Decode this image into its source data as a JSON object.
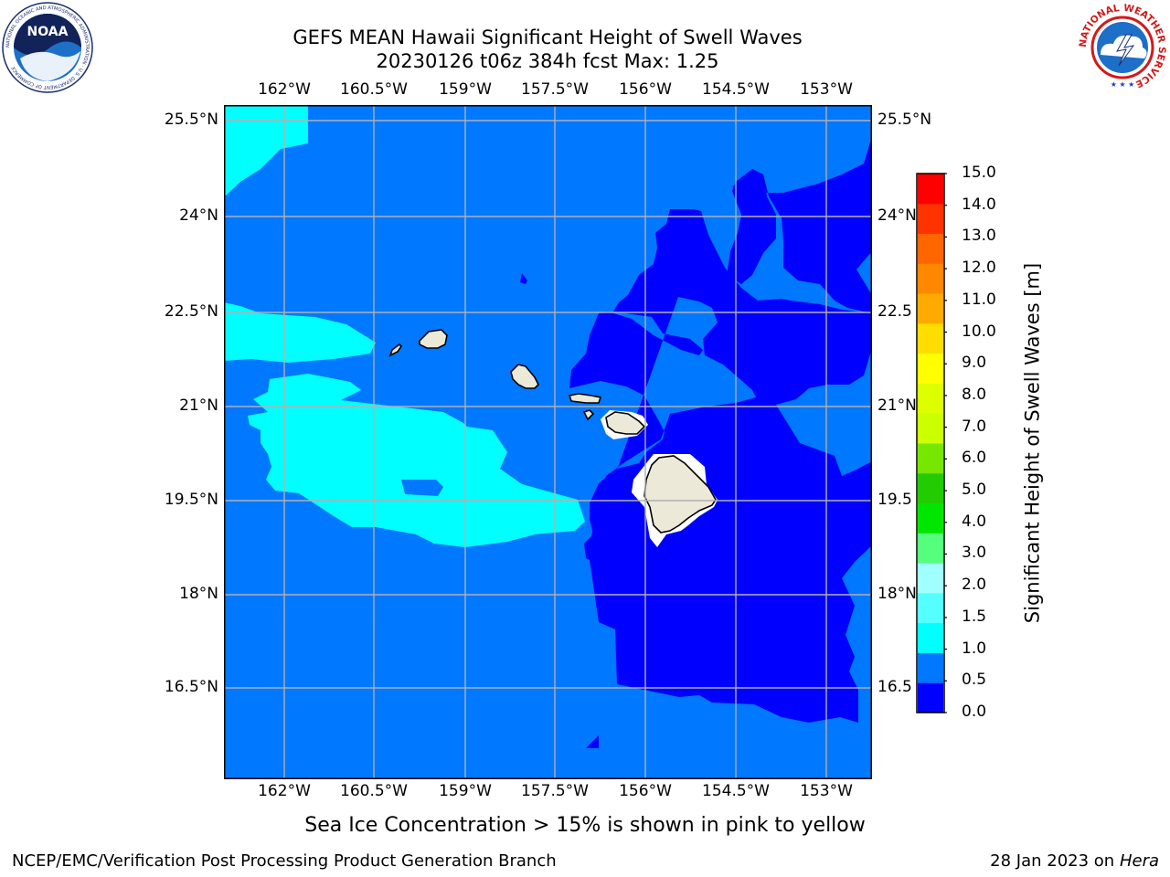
{
  "title": {
    "line1": "GEFS MEAN Hawaii Significant Height of Swell Waves",
    "line2": "20230126 t06z 384h fcst   Max: 1.25"
  },
  "map": {
    "lon_ticks": [
      "162°W",
      "160.5°W",
      "159°W",
      "157.5°W",
      "156°W",
      "154.5°W",
      "153°W"
    ],
    "lat_ticks": [
      "25.5°N",
      "24°N",
      "22.5°N",
      "21°N",
      "19.5°N",
      "18°N",
      "16.5°N"
    ],
    "right_lat_ticks": [
      "25.5°N",
      "24°N",
      "22.5",
      "21°N",
      "19.5",
      "18°N",
      "16.5"
    ],
    "fill_colors": {
      "0-0.5": "#0000ff",
      "0.5-1.0": "#0078ff",
      "1.0-1.5": "#00ffff",
      "land": "#ede9d9",
      "masked": "#ffffff"
    }
  },
  "colorbar": {
    "label": "Significant Height of Swell Waves [m]",
    "ticks": [
      "0.0",
      "0.5",
      "1.0",
      "1.5",
      "2.0",
      "3.0",
      "4.0",
      "5.0",
      "6.0",
      "7.0",
      "8.0",
      "9.0",
      "10.0",
      "11.0",
      "12.0",
      "13.0",
      "14.0",
      "15.0"
    ],
    "colors": [
      "#0000ff",
      "#0078ff",
      "#00ffff",
      "#55ffff",
      "#a0ffff",
      "#55ff7d",
      "#00e600",
      "#22cc00",
      "#77e600",
      "#ccff00",
      "#ddff00",
      "#ffff00",
      "#ffdd00",
      "#ffaa00",
      "#ff8800",
      "#ff6600",
      "#ff3300",
      "#ff0000"
    ]
  },
  "logos": {
    "noaa_text": "NOAA",
    "noaa_ring": "NATIONAL OCEANIC AND ATMOSPHERIC ADMINISTRATION · U.S. DEPARTMENT OF COMMERCE",
    "nws_ring": "NATIONAL WEATHER SERVICE"
  },
  "caption": "Sea Ice Concentration > 15% is shown in pink to yellow",
  "footer": {
    "left": "NCEP/EMC/Verification Post Processing Product Generation Branch",
    "right_date": "28 Jan 2023 on ",
    "right_host": "Hera"
  }
}
